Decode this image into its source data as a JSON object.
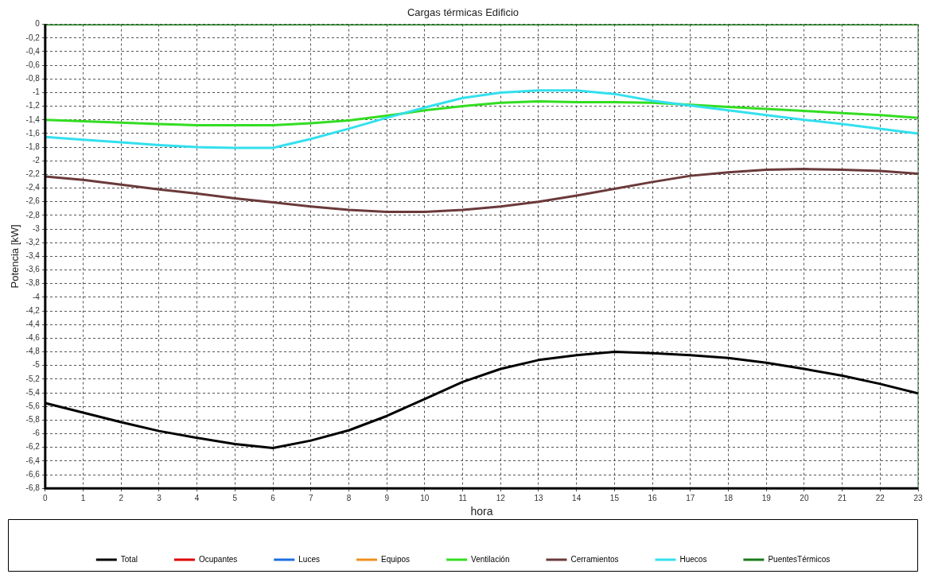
{
  "chart_data": {
    "type": "line",
    "title": "Cargas térmicas Edificio",
    "xlabel": "hora",
    "ylabel": "Potencia [kW]",
    "x": [
      0,
      1,
      2,
      3,
      4,
      5,
      6,
      7,
      8,
      9,
      10,
      11,
      12,
      13,
      14,
      15,
      16,
      17,
      18,
      19,
      20,
      21,
      22,
      23
    ],
    "xlim": [
      0,
      23
    ],
    "xticks": [
      0,
      1,
      2,
      3,
      4,
      5,
      6,
      7,
      8,
      9,
      10,
      11,
      12,
      13,
      14,
      15,
      16,
      17,
      18,
      19,
      20,
      21,
      22,
      23
    ],
    "ylim": [
      -6.8,
      0
    ],
    "yticks": [
      0,
      {
        "value": -0.2,
        "label": "-0,2"
      },
      {
        "value": -0.4,
        "label": "-0,4"
      },
      {
        "value": -0.6,
        "label": "-0,6"
      },
      {
        "value": -0.8,
        "label": "-0,8"
      },
      -1,
      {
        "value": -1.2,
        "label": "-1,2"
      },
      {
        "value": -1.4,
        "label": "-1,4"
      },
      {
        "value": -1.6,
        "label": "-1,6"
      },
      {
        "value": -1.8,
        "label": "-1,8"
      },
      -2,
      {
        "value": -2.2,
        "label": "-2,2"
      },
      {
        "value": -2.4,
        "label": "-2,4"
      },
      {
        "value": -2.6,
        "label": "-2,6"
      },
      {
        "value": -2.8,
        "label": "-2,8"
      },
      -3,
      {
        "value": -3.2,
        "label": "-3,2"
      },
      {
        "value": -3.4,
        "label": "-3,4"
      },
      {
        "value": -3.6,
        "label": "-3,6"
      },
      {
        "value": -3.8,
        "label": "-3,8"
      },
      -4,
      {
        "value": -4.2,
        "label": "-4,2"
      },
      {
        "value": -4.4,
        "label": "-4,4"
      },
      {
        "value": -4.6,
        "label": "-4,6"
      },
      {
        "value": -4.8,
        "label": "-4,8"
      },
      -5,
      {
        "value": -5.2,
        "label": "-5,2"
      },
      {
        "value": -5.4,
        "label": "-5,4"
      },
      {
        "value": -5.6,
        "label": "-5,6"
      },
      {
        "value": -5.8,
        "label": "-5,8"
      },
      -6,
      {
        "value": -6.2,
        "label": "-6,2"
      },
      {
        "value": -6.4,
        "label": "-6,4"
      },
      {
        "value": -6.6,
        "label": "-6,6"
      },
      {
        "value": -6.8,
        "label": "-6,8"
      }
    ],
    "grid": true,
    "legend": "bottom",
    "marker": "none",
    "line_style": "solid",
    "series": [
      {
        "name": "Total",
        "color": "#000000",
        "values": [
          -5.55,
          -5.69,
          -5.83,
          -5.96,
          -6.06,
          -6.15,
          -6.21,
          -6.1,
          -5.95,
          -5.74,
          -5.49,
          -5.24,
          -5.05,
          -4.92,
          -4.85,
          -4.8,
          -4.82,
          -4.85,
          -4.89,
          -4.96,
          -5.05,
          -5.15,
          -5.27,
          -5.41
        ]
      },
      {
        "name": "Ocupantes",
        "color": "#e00000",
        "values": [
          null,
          null,
          null,
          null,
          null,
          null,
          null,
          null,
          null,
          null,
          null,
          null,
          null,
          null,
          null,
          null,
          null,
          null,
          null,
          null,
          null,
          null,
          null,
          null
        ]
      },
      {
        "name": "Luces",
        "color": "#1e6fe0",
        "values": [
          null,
          null,
          null,
          null,
          null,
          null,
          null,
          null,
          null,
          null,
          null,
          null,
          null,
          null,
          null,
          null,
          null,
          null,
          null,
          null,
          null,
          null,
          null,
          null
        ]
      },
      {
        "name": "Equipos",
        "color": "#f0901e",
        "values": [
          null,
          null,
          null,
          null,
          null,
          null,
          null,
          null,
          null,
          null,
          null,
          null,
          null,
          null,
          null,
          null,
          null,
          null,
          null,
          null,
          null,
          null,
          null,
          null
        ]
      },
      {
        "name": "Ventilación",
        "color": "#33dd22",
        "values": [
          -1.4,
          -1.42,
          -1.44,
          -1.46,
          -1.48,
          -1.48,
          -1.48,
          -1.45,
          -1.41,
          -1.34,
          -1.26,
          -1.2,
          -1.15,
          -1.13,
          -1.14,
          -1.14,
          -1.15,
          -1.18,
          -1.21,
          -1.24,
          -1.27,
          -1.3,
          -1.33,
          -1.37
        ]
      },
      {
        "name": "Cerramientos",
        "color": "#6b3a3a",
        "values": [
          -2.23,
          -2.28,
          -2.35,
          -2.42,
          -2.48,
          -2.55,
          -2.61,
          -2.67,
          -2.72,
          -2.75,
          -2.75,
          -2.72,
          -2.67,
          -2.6,
          -2.51,
          -2.41,
          -2.31,
          -2.22,
          -2.17,
          -2.13,
          -2.12,
          -2.13,
          -2.15,
          -2.19
        ]
      },
      {
        "name": "Huecos",
        "color": "#33e0ee",
        "values": [
          -1.65,
          -1.69,
          -1.73,
          -1.77,
          -1.8,
          -1.81,
          -1.81,
          -1.68,
          -1.53,
          -1.37,
          -1.22,
          -1.08,
          -1,
          -0.97,
          -0.97,
          -1.02,
          -1.12,
          -1.19,
          -1.26,
          -1.33,
          -1.4,
          -1.46,
          -1.53,
          -1.6
        ]
      },
      {
        "name": "PuentesTérmicos",
        "color": "#1a7a1a",
        "values": [
          0,
          0,
          0,
          0,
          0,
          0,
          0,
          0,
          0,
          0,
          0,
          0,
          0,
          0,
          0,
          0,
          0,
          0,
          0,
          0,
          0,
          0,
          0,
          0
        ]
      }
    ]
  }
}
